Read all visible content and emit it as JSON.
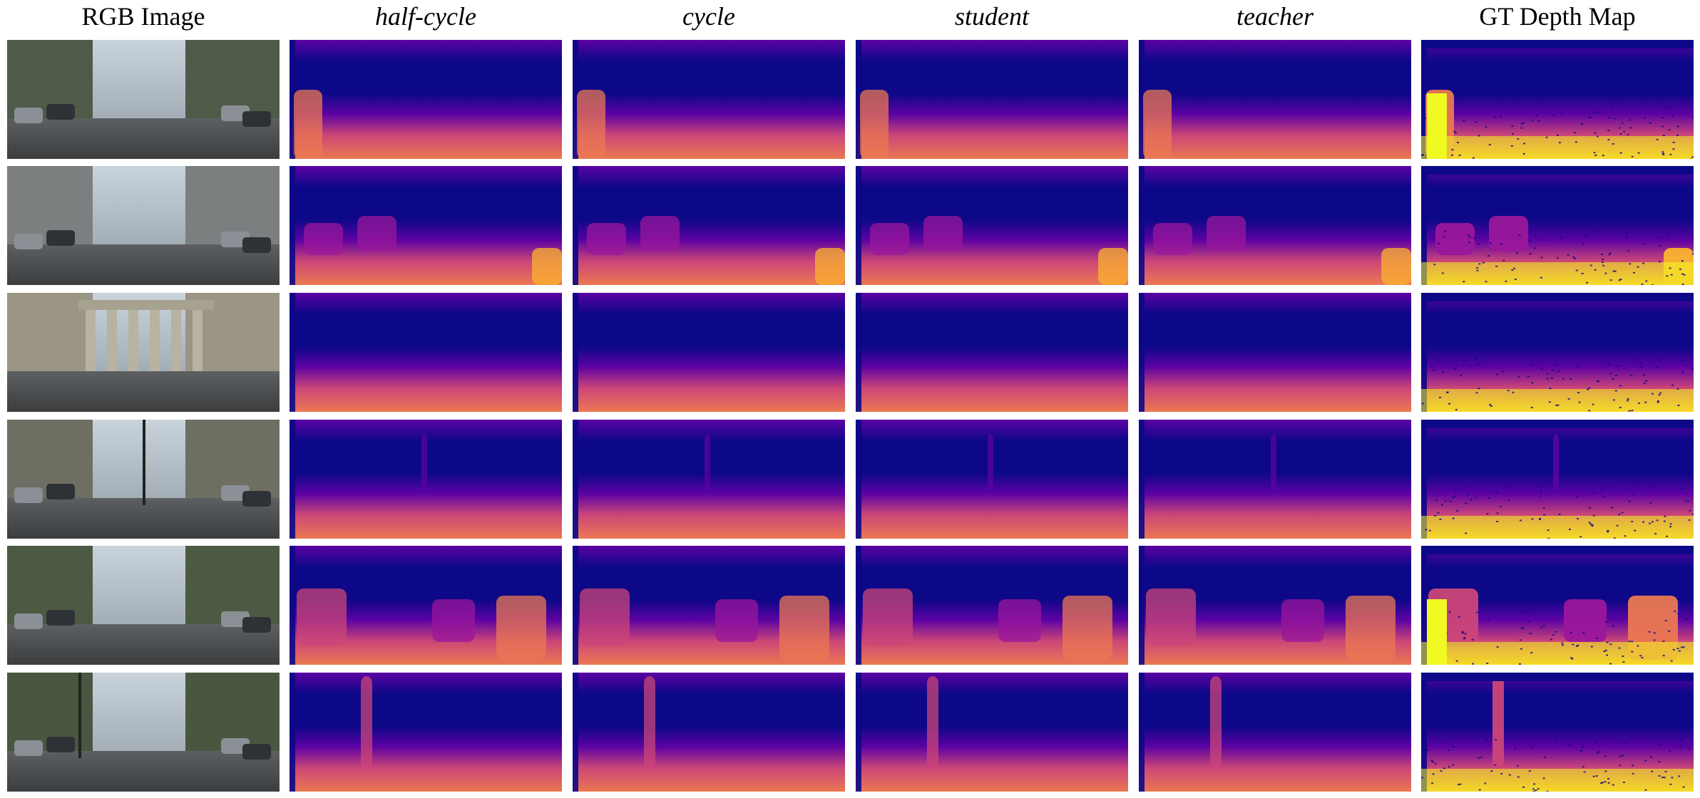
{
  "figure": {
    "columns": [
      {
        "label": "RGB Image",
        "style": "normal",
        "kind": "photo"
      },
      {
        "label": "half-cycle",
        "style": "italic",
        "kind": "depth"
      },
      {
        "label": "cycle",
        "style": "italic",
        "kind": "depth"
      },
      {
        "label": "student",
        "style": "italic",
        "kind": "depth"
      },
      {
        "label": "teacher",
        "style": "italic",
        "kind": "depth"
      },
      {
        "label": "GT Depth Map",
        "style": "normal",
        "kind": "gt"
      }
    ],
    "rows": [
      {
        "scene": "street with cars parked on both sides"
      },
      {
        "scene": "city road with cars and buildings"
      },
      {
        "scene": "gate with columns and a crowd of people"
      },
      {
        "scene": "road with tram and traffic light"
      },
      {
        "scene": "residential street with parked cars"
      },
      {
        "scene": "intersection with traffic light pole"
      }
    ],
    "colormap": {
      "name": "plasma",
      "stops": [
        "#0d0887",
        "#5b02a3",
        "#9a179b",
        "#cb4678",
        "#eb7852",
        "#fbb32f",
        "#f0f921"
      ]
    }
  }
}
